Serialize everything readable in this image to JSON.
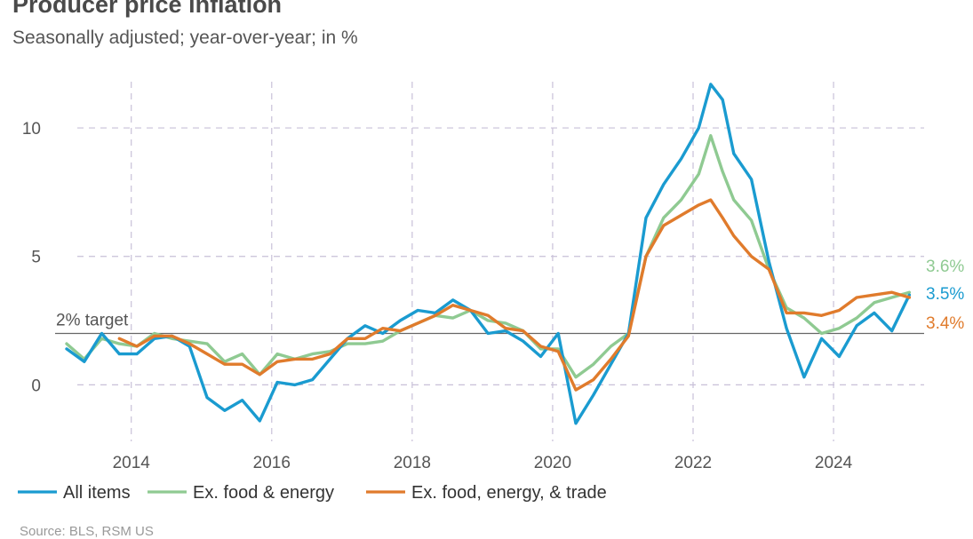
{
  "header": {
    "title": "Producer price inflation",
    "subtitle": "Seasonally adjusted; year-over-year; in %",
    "source": "Source: BLS, RSM US"
  },
  "colors": {
    "all": "#1a9bd0",
    "core": "#8fca92",
    "trade": "#e07b2c",
    "grid": "#c8c0d8",
    "target": "#666666"
  },
  "chart_data": {
    "type": "line",
    "title": "Producer price inflation",
    "subtitle": "Seasonally adjusted; year-over-year; in %",
    "xlabel": "",
    "ylabel": "",
    "xlim": [
      2013.08,
      2025.1
    ],
    "ylim": [
      -2.2,
      11.8
    ],
    "x_ticks": [
      2014,
      2016,
      2018,
      2020,
      2022,
      2024
    ],
    "x_tick_labels": [
      "2014",
      "2016",
      "2018",
      "2020",
      "2022",
      "2024"
    ],
    "y_ticks": [
      0,
      5,
      10
    ],
    "y_tick_labels": [
      "0",
      "5",
      "10"
    ],
    "grid": true,
    "reference_line": {
      "value": 2,
      "label": "2% target"
    },
    "series": [
      {
        "name": "All items",
        "key": "all",
        "end_label": "3.5%",
        "x": [
          2013.08,
          2013.33,
          2013.58,
          2013.83,
          2014.08,
          2014.33,
          2014.58,
          2014.83,
          2015.08,
          2015.33,
          2015.58,
          2015.83,
          2016.08,
          2016.33,
          2016.58,
          2016.83,
          2017.08,
          2017.33,
          2017.58,
          2017.83,
          2018.08,
          2018.33,
          2018.58,
          2018.83,
          2019.08,
          2019.33,
          2019.58,
          2019.83,
          2020.08,
          2020.33,
          2020.58,
          2020.83,
          2021.08,
          2021.33,
          2021.58,
          2021.83,
          2022.08,
          2022.25,
          2022.42,
          2022.58,
          2022.83,
          2023.08,
          2023.33,
          2023.58,
          2023.83,
          2024.08,
          2024.33,
          2024.58,
          2024.83,
          2025.08
        ],
        "values": [
          1.4,
          0.9,
          2.0,
          1.2,
          1.2,
          1.8,
          1.9,
          1.5,
          -0.5,
          -1.0,
          -0.6,
          -1.4,
          0.1,
          0.0,
          0.2,
          1.0,
          1.8,
          2.3,
          2.0,
          2.5,
          2.9,
          2.8,
          3.3,
          2.9,
          2.0,
          2.1,
          1.7,
          1.1,
          2.0,
          -1.5,
          -0.4,
          0.8,
          2.0,
          6.5,
          7.8,
          8.8,
          10.0,
          11.7,
          11.1,
          9.0,
          8.0,
          4.8,
          2.2,
          0.3,
          1.8,
          1.1,
          2.3,
          2.8,
          2.1,
          3.5
        ]
      },
      {
        "name": "Ex. food & energy",
        "key": "core",
        "end_label": "3.6%",
        "x": [
          2013.08,
          2013.33,
          2013.58,
          2013.83,
          2014.08,
          2014.33,
          2014.58,
          2014.83,
          2015.08,
          2015.33,
          2015.58,
          2015.83,
          2016.08,
          2016.33,
          2016.58,
          2016.83,
          2017.08,
          2017.33,
          2017.58,
          2017.83,
          2018.08,
          2018.33,
          2018.58,
          2018.83,
          2019.08,
          2019.33,
          2019.58,
          2019.83,
          2020.08,
          2020.33,
          2020.58,
          2020.83,
          2021.08,
          2021.33,
          2021.58,
          2021.83,
          2022.08,
          2022.25,
          2022.42,
          2022.58,
          2022.83,
          2023.08,
          2023.33,
          2023.58,
          2023.83,
          2024.08,
          2024.33,
          2024.58,
          2024.83,
          2025.08
        ],
        "values": [
          1.6,
          1.0,
          1.8,
          1.6,
          1.5,
          2.0,
          1.8,
          1.7,
          1.6,
          0.9,
          1.2,
          0.4,
          1.2,
          1.0,
          1.2,
          1.3,
          1.6,
          1.6,
          1.7,
          2.1,
          2.4,
          2.7,
          2.6,
          2.9,
          2.5,
          2.4,
          2.1,
          1.4,
          1.4,
          0.3,
          0.8,
          1.5,
          2.0,
          5.0,
          6.5,
          7.2,
          8.2,
          9.7,
          8.3,
          7.2,
          6.4,
          4.5,
          3.0,
          2.6,
          2.0,
          2.2,
          2.6,
          3.2,
          3.4,
          3.6
        ]
      },
      {
        "name": "Ex. food, energy, & trade",
        "key": "trade",
        "end_label": "3.4%",
        "x": [
          2013.08,
          2013.33,
          2013.58,
          2013.83,
          2014.08,
          2014.33,
          2014.58,
          2014.83,
          2015.08,
          2015.33,
          2015.58,
          2015.83,
          2016.08,
          2016.33,
          2016.58,
          2016.83,
          2017.08,
          2017.33,
          2017.58,
          2017.83,
          2018.08,
          2018.33,
          2018.58,
          2018.83,
          2019.08,
          2019.33,
          2019.58,
          2019.83,
          2020.08,
          2020.33,
          2020.58,
          2020.83,
          2021.08,
          2021.33,
          2021.58,
          2021.83,
          2022.08,
          2022.25,
          2022.42,
          2022.58,
          2022.83,
          2023.08,
          2023.33,
          2023.58,
          2023.83,
          2024.08,
          2024.33,
          2024.58,
          2024.83,
          2025.08
        ],
        "values": [
          null,
          null,
          null,
          1.8,
          1.5,
          1.9,
          1.9,
          1.6,
          1.2,
          0.8,
          0.8,
          0.4,
          0.9,
          1.0,
          1.0,
          1.2,
          1.8,
          1.8,
          2.2,
          2.1,
          2.4,
          2.7,
          3.1,
          2.9,
          2.7,
          2.2,
          2.1,
          1.5,
          1.3,
          -0.2,
          0.2,
          1.0,
          1.9,
          5.0,
          6.2,
          6.6,
          7.0,
          7.2,
          6.5,
          5.8,
          5.0,
          4.5,
          2.8,
          2.8,
          2.7,
          2.9,
          3.4,
          3.5,
          3.6,
          3.4
        ]
      }
    ]
  }
}
